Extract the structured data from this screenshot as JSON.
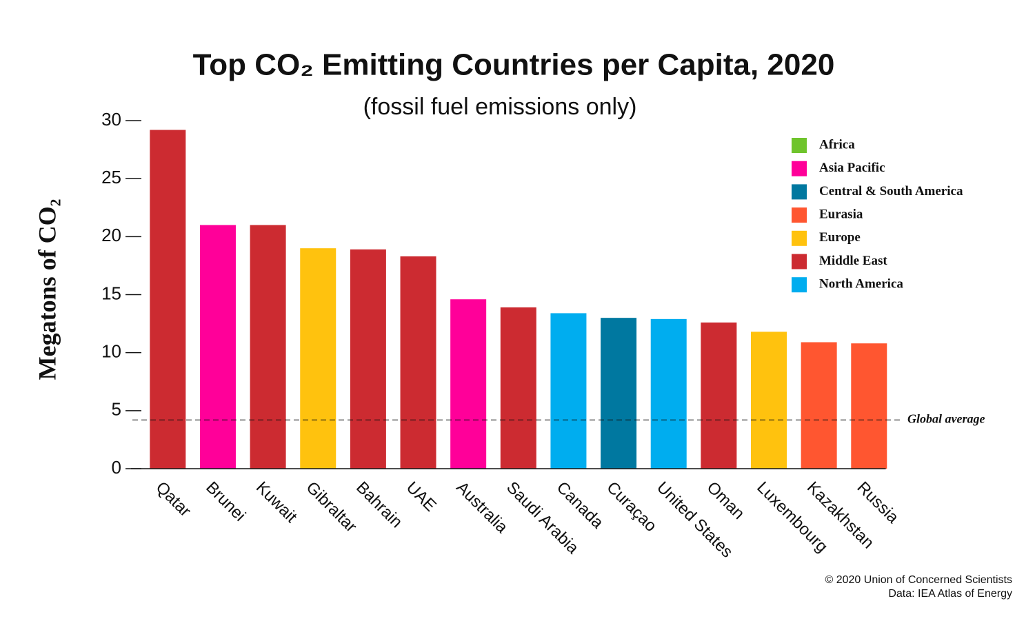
{
  "chart_data": {
    "type": "bar",
    "title": "Top CO₂ Emitting Countries per Capita, 2020",
    "subtitle": "(fossil fuel emissions only)",
    "y_label": "Megatons of CO₂",
    "categories": [
      "Qatar",
      "Brunei",
      "Kuwait",
      "Gibraltar",
      "Bahrain",
      "UAE",
      "Australia",
      "Saudi Arabia",
      "Canada",
      "Curaçao",
      "United States",
      "Oman",
      "Luxembourg",
      "Kazakhstan",
      "Russia"
    ],
    "values": [
      29.2,
      21.0,
      21.0,
      19.0,
      18.9,
      18.3,
      14.6,
      13.9,
      13.4,
      13.0,
      12.9,
      12.6,
      11.8,
      10.9,
      10.8
    ],
    "colors": [
      "#cc2b31",
      "#ff0099",
      "#cc2b31",
      "#ffc20e",
      "#cc2b31",
      "#cc2b31",
      "#ff0099",
      "#cc2b31",
      "#00adef",
      "#0078a0",
      "#00adef",
      "#cc2b31",
      "#ffc20e",
      "#ff5630",
      "#ff5630"
    ],
    "legend": [
      {
        "name": "Africa",
        "color": "#6fc42c"
      },
      {
        "name": "Asia Pacific",
        "color": "#ff0099"
      },
      {
        "name": "Central & South America",
        "color": "#0078a0"
      },
      {
        "name": "Eurasia",
        "color": "#ff5630"
      },
      {
        "name": "Europe",
        "color": "#ffc20e"
      },
      {
        "name": "Middle East",
        "color": "#cc2b31"
      },
      {
        "name": "North America",
        "color": "#00adef"
      }
    ],
    "reference_line": {
      "label": "Global average",
      "value": 4.2
    },
    "ylim": [
      0,
      30
    ],
    "yticks": [
      0,
      5,
      10,
      15,
      20,
      25,
      30
    ],
    "footer": [
      "© 2020 Union of Concerned Scientists",
      "Data: IEA Atlas of Energy"
    ]
  }
}
